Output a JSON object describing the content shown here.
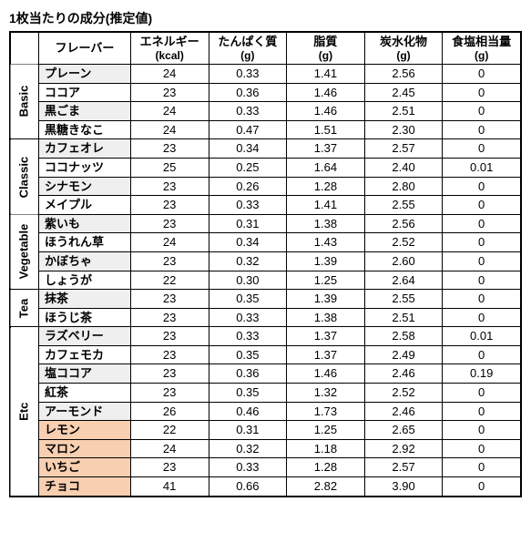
{
  "title": "1枚当たりの成分(推定値)",
  "columns": [
    {
      "label": "フレーバー",
      "sub": ""
    },
    {
      "label": "エネルギー",
      "sub": "(kcal)"
    },
    {
      "label": "たんぱく質",
      "sub": "(g)"
    },
    {
      "label": "脂質",
      "sub": "(g)"
    },
    {
      "label": "炭水化物",
      "sub": "(g)"
    },
    {
      "label": "食塩相当量",
      "sub": "(g)"
    }
  ],
  "categories": [
    {
      "name": "Basic",
      "rows": [
        {
          "flavor": "プレーン",
          "v": [
            "24",
            "0.33",
            "1.41",
            "2.56",
            "0"
          ],
          "alt": true
        },
        {
          "flavor": "ココア",
          "v": [
            "23",
            "0.36",
            "1.46",
            "2.45",
            "0"
          ]
        },
        {
          "flavor": "黒ごま",
          "v": [
            "24",
            "0.33",
            "1.46",
            "2.51",
            "0"
          ],
          "alt": true
        },
        {
          "flavor": "黒糖きなこ",
          "v": [
            "24",
            "0.47",
            "1.51",
            "2.30",
            "0"
          ]
        }
      ]
    },
    {
      "name": "Classic",
      "rows": [
        {
          "flavor": "カフェオレ",
          "v": [
            "23",
            "0.34",
            "1.37",
            "2.57",
            "0"
          ],
          "alt": true
        },
        {
          "flavor": "ココナッツ",
          "v": [
            "25",
            "0.25",
            "1.64",
            "2.40",
            "0.01"
          ]
        },
        {
          "flavor": "シナモン",
          "v": [
            "23",
            "0.26",
            "1.28",
            "2.80",
            "0"
          ],
          "alt": true
        },
        {
          "flavor": "メイプル",
          "v": [
            "23",
            "0.33",
            "1.41",
            "2.55",
            "0"
          ]
        }
      ]
    },
    {
      "name": "Vegetable",
      "rows": [
        {
          "flavor": "紫いも",
          "v": [
            "23",
            "0.31",
            "1.38",
            "2.56",
            "0"
          ],
          "alt": true
        },
        {
          "flavor": "ほうれん草",
          "v": [
            "24",
            "0.34",
            "1.43",
            "2.52",
            "0"
          ]
        },
        {
          "flavor": "かぼちゃ",
          "v": [
            "23",
            "0.32",
            "1.39",
            "2.60",
            "0"
          ],
          "alt": true
        },
        {
          "flavor": "しょうが",
          "v": [
            "22",
            "0.30",
            "1.25",
            "2.64",
            "0"
          ]
        }
      ]
    },
    {
      "name": "Tea",
      "rows": [
        {
          "flavor": "抹茶",
          "v": [
            "23",
            "0.35",
            "1.39",
            "2.55",
            "0"
          ],
          "alt": true
        },
        {
          "flavor": "ほうじ茶",
          "v": [
            "23",
            "0.33",
            "1.38",
            "2.51",
            "0"
          ]
        }
      ]
    },
    {
      "name": "Etc",
      "rows": [
        {
          "flavor": "ラズベリー",
          "v": [
            "23",
            "0.33",
            "1.37",
            "2.58",
            "0.01"
          ],
          "alt": true
        },
        {
          "flavor": "カフェモカ",
          "v": [
            "23",
            "0.35",
            "1.37",
            "2.49",
            "0"
          ]
        },
        {
          "flavor": "塩ココア",
          "v": [
            "23",
            "0.36",
            "1.46",
            "2.46",
            "0.19"
          ],
          "alt": true
        },
        {
          "flavor": "紅茶",
          "v": [
            "23",
            "0.35",
            "1.32",
            "2.52",
            "0"
          ]
        },
        {
          "flavor": "アーモンド",
          "v": [
            "26",
            "0.46",
            "1.73",
            "2.46",
            "0"
          ],
          "alt": true
        },
        {
          "flavor": "レモン",
          "v": [
            "22",
            "0.31",
            "1.25",
            "2.65",
            "0"
          ],
          "hl": true
        },
        {
          "flavor": "マロン",
          "v": [
            "24",
            "0.32",
            "1.18",
            "2.92",
            "0"
          ],
          "hl": true
        },
        {
          "flavor": "いちご",
          "v": [
            "23",
            "0.33",
            "1.28",
            "2.57",
            "0"
          ],
          "hl": true
        },
        {
          "flavor": "チョコ",
          "v": [
            "41",
            "0.66",
            "2.82",
            "3.90",
            "0"
          ],
          "hl": true
        }
      ]
    }
  ]
}
